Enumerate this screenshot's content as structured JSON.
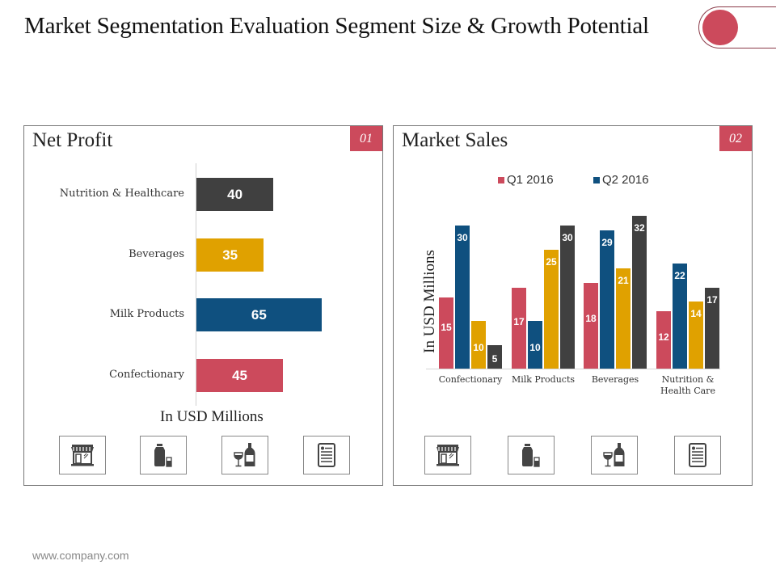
{
  "title": "Market Segmentation Evaluation Segment Size & Growth Potential",
  "footer": "www.company.com",
  "colors": {
    "red": "#cc4a5c",
    "blue": "#0f507f",
    "yellow": "#e0a100",
    "dark": "#404040"
  },
  "panels": {
    "net_profit": {
      "title": "Net Profit",
      "badge": "01",
      "unit_label": "In USD Millions",
      "icons": [
        "store-icon",
        "milk-bottle-icon",
        "wine-icon",
        "menu-card-icon"
      ]
    },
    "market_sales": {
      "title": "Market Sales",
      "badge": "02",
      "unit_label": "In USD Millions",
      "legend": [
        "Q1 2016",
        "Q2 2016"
      ],
      "icons": [
        "store-icon",
        "milk-bottle-icon",
        "wine-icon",
        "menu-card-icon"
      ]
    }
  },
  "chart_data": [
    {
      "type": "bar",
      "orientation": "horizontal",
      "title": "Net Profit",
      "xlabel": "In USD Millions",
      "ylabel": "",
      "categories": [
        "Nutrition & Healthcare",
        "Beverages",
        "Milk Products",
        "Confectionary"
      ],
      "values": [
        40,
        35,
        65,
        45
      ],
      "bar_colors": [
        "#404040",
        "#e0a100",
        "#0f507f",
        "#cc4a5c"
      ],
      "data_labels": true,
      "grid": false
    },
    {
      "type": "bar",
      "orientation": "vertical",
      "title": "Market Sales",
      "xlabel": "",
      "ylabel": "In USD Millions",
      "categories": [
        "Confectionary",
        "Milk Products",
        "Beverages",
        "Nutrition & Health Care"
      ],
      "series": [
        {
          "name": "Q1 2016",
          "color": "#cc4a5c",
          "values": [
            15,
            17,
            18,
            12
          ]
        },
        {
          "name": "Q2 2016",
          "color": "#0f507f",
          "values": [
            30,
            10,
            29,
            22
          ]
        },
        {
          "name": "",
          "color": "#e0a100",
          "values": [
            10,
            25,
            21,
            14
          ]
        },
        {
          "name": "",
          "color": "#404040",
          "values": [
            5,
            30,
            32,
            17
          ]
        }
      ],
      "legend": [
        "Q1 2016",
        "Q2 2016"
      ],
      "legend_position": "top-center",
      "ylim": [
        0,
        32
      ],
      "data_labels": true,
      "grid": false
    }
  ]
}
